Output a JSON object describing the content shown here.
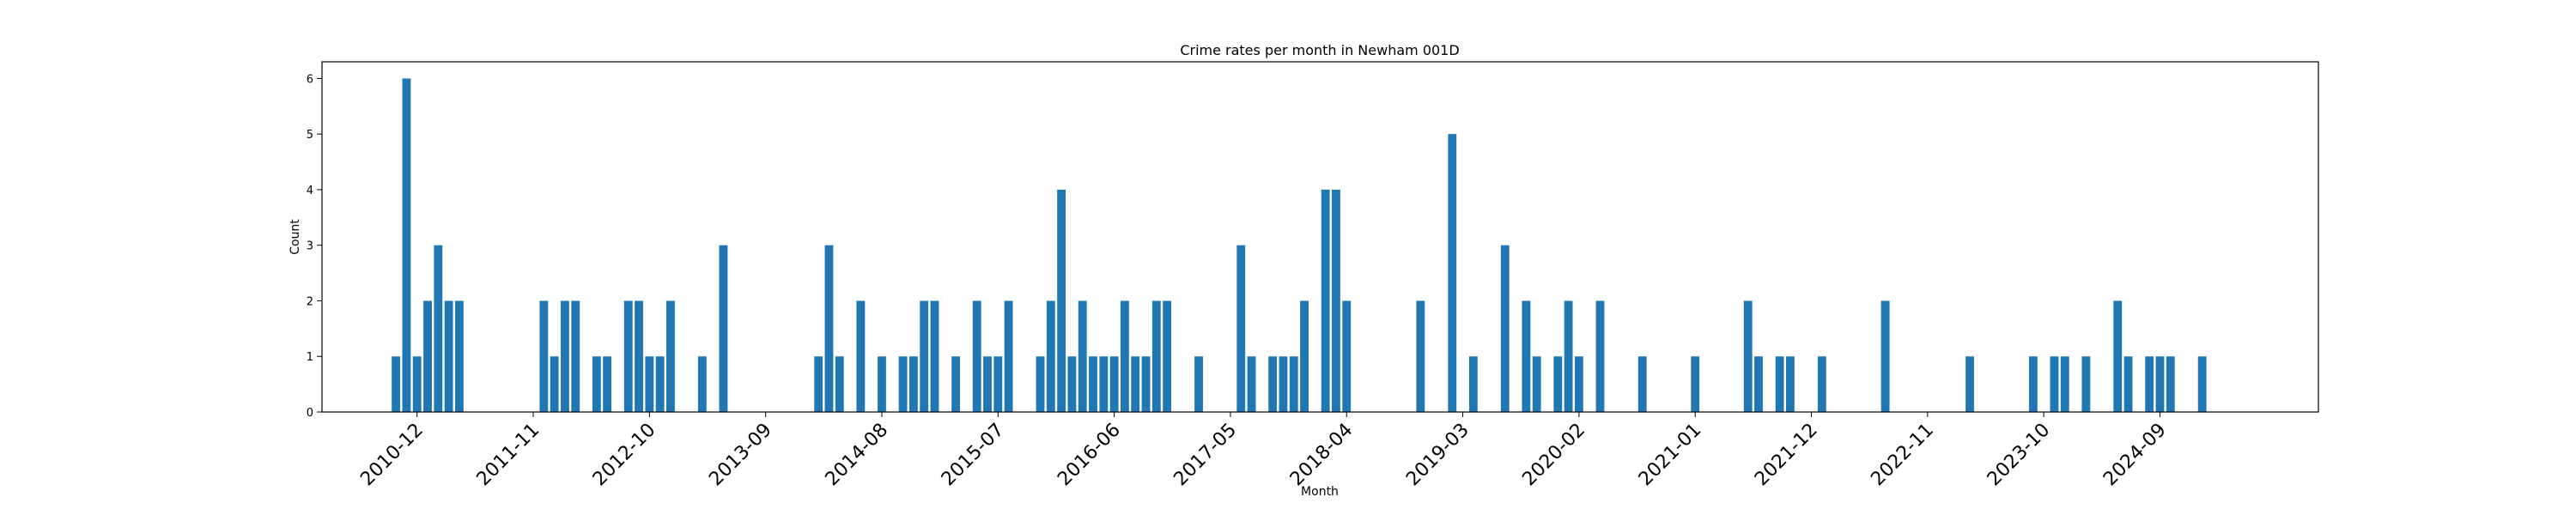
{
  "chart_data": {
    "type": "bar",
    "title": "Crime rates per month in Newham 001D",
    "xlabel": "Month",
    "ylabel": "Count",
    "ylim": [
      0,
      6.3
    ],
    "yticks": [
      0,
      1,
      2,
      3,
      4,
      5,
      6
    ],
    "xlim": [
      "2010-03",
      "2025-12"
    ],
    "x_tick_labels": [
      "2010-12",
      "2011-11",
      "2012-10",
      "2013-09",
      "2014-08",
      "2015-07",
      "2016-06",
      "2017-05",
      "2018-04",
      "2019-03",
      "2020-02",
      "2021-01",
      "2021-12",
      "2022-11",
      "2023-10",
      "2024-09"
    ],
    "grid": false,
    "bar_color": "#1f77b4",
    "x": [
      "2010-10",
      "2010-11",
      "2010-12",
      "2011-01",
      "2011-02",
      "2011-03",
      "2011-04",
      "2011-12",
      "2012-01",
      "2012-02",
      "2012-03",
      "2012-05",
      "2012-06",
      "2012-08",
      "2012-09",
      "2012-10",
      "2012-11",
      "2012-12",
      "2013-03",
      "2013-05",
      "2014-02",
      "2014-03",
      "2014-04",
      "2014-06",
      "2014-08",
      "2014-10",
      "2014-11",
      "2014-12",
      "2015-01",
      "2015-03",
      "2015-05",
      "2015-06",
      "2015-07",
      "2015-08",
      "2015-11",
      "2015-12",
      "2016-01",
      "2016-02",
      "2016-03",
      "2016-04",
      "2016-05",
      "2016-06",
      "2016-07",
      "2016-08",
      "2016-09",
      "2016-10",
      "2016-11",
      "2017-02",
      "2017-06",
      "2017-07",
      "2017-09",
      "2017-10",
      "2017-11",
      "2017-12",
      "2018-02",
      "2018-03",
      "2018-04",
      "2018-11",
      "2019-02",
      "2019-04",
      "2019-07",
      "2019-09",
      "2019-10",
      "2019-12",
      "2020-01",
      "2020-02",
      "2020-04",
      "2020-08",
      "2021-01",
      "2021-06",
      "2021-07",
      "2021-09",
      "2021-10",
      "2022-01",
      "2022-07",
      "2023-03",
      "2023-09",
      "2023-11",
      "2023-12",
      "2024-02",
      "2024-05",
      "2024-06",
      "2024-08",
      "2024-09",
      "2024-10",
      "2025-01"
    ],
    "values": [
      1,
      6,
      1,
      2,
      3,
      2,
      2,
      2,
      1,
      2,
      2,
      1,
      1,
      2,
      2,
      1,
      1,
      2,
      1,
      3,
      1,
      3,
      1,
      2,
      1,
      1,
      1,
      2,
      2,
      1,
      2,
      1,
      1,
      2,
      1,
      2,
      4,
      1,
      2,
      1,
      1,
      1,
      2,
      1,
      1,
      2,
      2,
      1,
      3,
      1,
      1,
      1,
      1,
      2,
      4,
      4,
      2,
      2,
      5,
      1,
      3,
      2,
      1,
      1,
      2,
      1,
      2,
      1,
      1,
      2,
      1,
      1,
      1,
      1,
      2,
      1,
      1,
      1,
      1,
      1,
      2,
      1,
      1,
      1,
      1,
      1
    ]
  }
}
